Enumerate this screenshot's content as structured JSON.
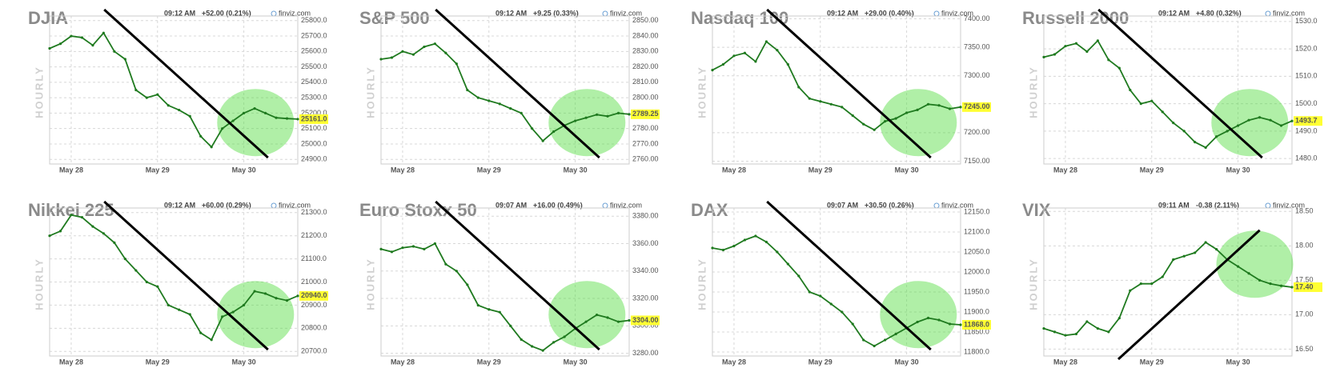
{
  "chart_data": [
    {
      "type": "line",
      "title": "DJIA",
      "time": "09:12 AM",
      "change": "+52.00 (0.21%)",
      "change_color": "#1a9e1a",
      "source": "finviz.com",
      "side_label": "HOURLY",
      "categories": [
        null,
        null,
        "May 28",
        null,
        null,
        null,
        null,
        null,
        null,
        null,
        "May 29",
        null,
        null,
        null,
        null,
        null,
        null,
        null,
        "May 30",
        null,
        null,
        null,
        null,
        null
      ],
      "values": [
        25620,
        25650,
        25700,
        25690,
        25640,
        25720,
        25600,
        25550,
        25350,
        25300,
        25320,
        25250,
        25220,
        25180,
        25050,
        24980,
        25100,
        25150,
        25200,
        25230,
        25200,
        25170,
        25165,
        25161
      ],
      "color": "#1f7a1f",
      "ylim": [
        24870,
        25830
      ],
      "yticks": [
        {
          "value": 24900,
          "label": "24900.0"
        },
        {
          "value": 25000,
          "label": "25000.0"
        },
        {
          "value": 25100,
          "label": "25100.0"
        },
        {
          "value": 25200,
          "label": "25200.0"
        },
        {
          "value": 25300,
          "label": "25300.0"
        },
        {
          "value": 25400,
          "label": "25400.0"
        },
        {
          "value": 25500,
          "label": "25500.0"
        },
        {
          "value": 25600,
          "label": "25600.0"
        },
        {
          "value": 25700,
          "label": "25700.0"
        },
        {
          "value": 25800,
          "label": "25800.0"
        }
      ],
      "last": {
        "value": 25161,
        "label": "25161.0"
      },
      "trend": "down"
    },
    {
      "type": "line",
      "title": "S&P 500",
      "time": "09:12 AM",
      "change": "+9.25 (0.33%)",
      "change_color": "#1a9e1a",
      "source": "finviz.com",
      "side_label": "HOURLY",
      "categories": [
        null,
        null,
        "May 28",
        null,
        null,
        null,
        null,
        null,
        null,
        null,
        "May 29",
        null,
        null,
        null,
        null,
        null,
        null,
        null,
        "May 30",
        null,
        null,
        null,
        null,
        null
      ],
      "values": [
        2825,
        2826,
        2830,
        2828,
        2833,
        2835,
        2829,
        2822,
        2805,
        2800,
        2798,
        2796,
        2793,
        2790,
        2780,
        2772,
        2778,
        2782,
        2785,
        2787,
        2789,
        2788,
        2790,
        2789.25
      ],
      "color": "#1f7a1f",
      "ylim": [
        2757,
        2853
      ],
      "yticks": [
        {
          "value": 2760,
          "label": "2760.00"
        },
        {
          "value": 2770,
          "label": "2770.00"
        },
        {
          "value": 2780,
          "label": "2780.00"
        },
        {
          "value": 2790,
          "label": "2790.00"
        },
        {
          "value": 2800,
          "label": "2800.00"
        },
        {
          "value": 2810,
          "label": "2810.00"
        },
        {
          "value": 2820,
          "label": "2820.00"
        },
        {
          "value": 2830,
          "label": "2830.00"
        },
        {
          "value": 2840,
          "label": "2840.00"
        },
        {
          "value": 2850,
          "label": "2850.00"
        }
      ],
      "last": {
        "value": 2789.25,
        "label": "2789.25"
      },
      "trend": "down"
    },
    {
      "type": "line",
      "title": "Nasdaq 100",
      "time": "09:12 AM",
      "change": "+29.00 (0.40%)",
      "change_color": "#1a9e1a",
      "source": "finviz.com",
      "side_label": "HOURLY",
      "categories": [
        null,
        null,
        "May 28",
        null,
        null,
        null,
        null,
        null,
        null,
        null,
        "May 29",
        null,
        null,
        null,
        null,
        null,
        null,
        null,
        "May 30",
        null,
        null,
        null,
        null,
        null
      ],
      "values": [
        7310,
        7320,
        7335,
        7340,
        7325,
        7360,
        7345,
        7320,
        7280,
        7260,
        7255,
        7250,
        7245,
        7230,
        7215,
        7205,
        7220,
        7225,
        7235,
        7240,
        7250,
        7248,
        7242,
        7245
      ],
      "color": "#1f7a1f",
      "ylim": [
        7145,
        7405
      ],
      "yticks": [
        {
          "value": 7150,
          "label": "7150.00"
        },
        {
          "value": 7200,
          "label": "7200.00"
        },
        {
          "value": 7300,
          "label": "7300.00"
        },
        {
          "value": 7350,
          "label": "7350.00"
        },
        {
          "value": 7400,
          "label": "7400.00"
        }
      ],
      "last": {
        "value": 7245,
        "label": "7245.00"
      },
      "trend": "down"
    },
    {
      "type": "line",
      "title": "Russell 2000",
      "time": "09:12 AM",
      "change": "+4.80 (0.32%)",
      "change_color": "#1a9e1a",
      "source": "finviz.com",
      "side_label": "HOURLY",
      "categories": [
        null,
        null,
        "May 28",
        null,
        null,
        null,
        null,
        null,
        null,
        null,
        "May 29",
        null,
        null,
        null,
        null,
        null,
        null,
        null,
        "May 30",
        null,
        null,
        null,
        null,
        null
      ],
      "values": [
        1517,
        1518,
        1521,
        1522,
        1519,
        1523,
        1516,
        1513,
        1505,
        1500,
        1501,
        1497,
        1493,
        1490,
        1486,
        1484,
        1488,
        1490,
        1492,
        1494,
        1495,
        1494,
        1492,
        1493.7
      ],
      "color": "#1f7a1f",
      "ylim": [
        1478,
        1532
      ],
      "yticks": [
        {
          "value": 1480,
          "label": "1480.0"
        },
        {
          "value": 1490,
          "label": "1490.0"
        },
        {
          "value": 1500,
          "label": "1500.0"
        },
        {
          "value": 1510,
          "label": "1510.0"
        },
        {
          "value": 1520,
          "label": "1520.0"
        },
        {
          "value": 1530,
          "label": "1530.0"
        }
      ],
      "last": {
        "value": 1493.7,
        "label": "1493.7"
      },
      "trend": "down"
    },
    {
      "type": "line",
      "title": "Nikkei 225",
      "time": "09:12 AM",
      "change": "+60.00 (0.29%)",
      "change_color": "#1a9e1a",
      "source": "finviz.com",
      "side_label": "HOURLY",
      "categories": [
        null,
        null,
        "May 28",
        null,
        null,
        null,
        null,
        null,
        null,
        null,
        "May 29",
        null,
        null,
        null,
        null,
        null,
        null,
        null,
        "May 30",
        null,
        null,
        null,
        null,
        null
      ],
      "values": [
        21200,
        21220,
        21290,
        21280,
        21240,
        21210,
        21170,
        21100,
        21050,
        21000,
        20980,
        20900,
        20880,
        20860,
        20780,
        20750,
        20850,
        20870,
        20900,
        20960,
        20950,
        20930,
        20920,
        20940
      ],
      "color": "#1f7a1f",
      "ylim": [
        20680,
        21320
      ],
      "yticks": [
        {
          "value": 20700,
          "label": "20700.0"
        },
        {
          "value": 20800,
          "label": "20800.0"
        },
        {
          "value": 20900,
          "label": "20900.0"
        },
        {
          "value": 21000,
          "label": "21000.0"
        },
        {
          "value": 21100,
          "label": "21100.0"
        },
        {
          "value": 21200,
          "label": "21200.0"
        },
        {
          "value": 21300,
          "label": "21300.0"
        }
      ],
      "last": {
        "value": 20940,
        "label": "20940.0"
      },
      "trend": "down"
    },
    {
      "type": "line",
      "title": "Euro Stoxx 50",
      "time": "09:07 AM",
      "change": "+16.00 (0.49%)",
      "change_color": "#1a9e1a",
      "source": "finviz.com",
      "side_label": "HOURLY",
      "categories": [
        null,
        null,
        "May 28",
        null,
        null,
        null,
        null,
        null,
        null,
        null,
        "May 29",
        null,
        null,
        null,
        null,
        null,
        null,
        null,
        "May 30",
        null,
        null,
        null,
        null,
        null
      ],
      "values": [
        3356,
        3354,
        3357,
        3358,
        3356,
        3360,
        3345,
        3340,
        3330,
        3315,
        3312,
        3310,
        3300,
        3290,
        3285,
        3282,
        3288,
        3292,
        3298,
        3303,
        3308,
        3306,
        3303,
        3304
      ],
      "color": "#1f7a1f",
      "ylim": [
        3278,
        3386
      ],
      "yticks": [
        {
          "value": 3280,
          "label": "3280.00"
        },
        {
          "value": 3300,
          "label": "3300.00"
        },
        {
          "value": 3320,
          "label": "3320.00"
        },
        {
          "value": 3340,
          "label": "3340.00"
        },
        {
          "value": 3360,
          "label": "3360.00"
        },
        {
          "value": 3380,
          "label": "3380.00"
        }
      ],
      "last": {
        "value": 3304,
        "label": "3304.00"
      },
      "trend": "down"
    },
    {
      "type": "line",
      "title": "DAX",
      "time": "09:07 AM",
      "change": "+30.50 (0.26%)",
      "change_color": "#1a9e1a",
      "source": "finviz.com",
      "side_label": "HOURLY",
      "categories": [
        null,
        null,
        "May 28",
        null,
        null,
        null,
        null,
        null,
        null,
        null,
        "May 29",
        null,
        null,
        null,
        null,
        null,
        null,
        null,
        "May 30",
        null,
        null,
        null,
        null,
        null
      ],
      "values": [
        12060,
        12055,
        12065,
        12080,
        12090,
        12075,
        12050,
        12020,
        11990,
        11950,
        11940,
        11920,
        11900,
        11870,
        11830,
        11815,
        11830,
        11845,
        11860,
        11875,
        11885,
        11880,
        11870,
        11868
      ],
      "color": "#1f7a1f",
      "ylim": [
        11790,
        12160
      ],
      "yticks": [
        {
          "value": 11800,
          "label": "11800.0"
        },
        {
          "value": 11850,
          "label": "11850.0"
        },
        {
          "value": 11900,
          "label": "11900.0"
        },
        {
          "value": 11950,
          "label": "11950.0"
        },
        {
          "value": 12000,
          "label": "12000.0"
        },
        {
          "value": 12050,
          "label": "12050.0"
        },
        {
          "value": 12100,
          "label": "12100.0"
        },
        {
          "value": 12150,
          "label": "12150.0"
        }
      ],
      "last": {
        "value": 11868,
        "label": "11868.0"
      },
      "trend": "down"
    },
    {
      "type": "line",
      "title": "VIX",
      "time": "09:11 AM",
      "change": "-0.38 (2.11%)",
      "change_color": "#d42020",
      "source": "finviz.com",
      "side_label": "HOURLY",
      "categories": [
        null,
        null,
        "May 28",
        null,
        null,
        null,
        null,
        null,
        null,
        null,
        "May 29",
        null,
        null,
        null,
        null,
        null,
        null,
        null,
        "May 30",
        null,
        null,
        null,
        null,
        null
      ],
      "values": [
        16.8,
        16.75,
        16.7,
        16.72,
        16.9,
        16.8,
        16.75,
        16.95,
        17.35,
        17.45,
        17.45,
        17.55,
        17.8,
        17.85,
        17.9,
        18.05,
        17.95,
        17.8,
        17.7,
        17.6,
        17.5,
        17.45,
        17.42,
        17.4
      ],
      "color": "#1f7a1f",
      "ylim": [
        16.4,
        18.55
      ],
      "yticks": [
        {
          "value": 16.5,
          "label": "16.50"
        },
        {
          "value": 17,
          "label": "17.00"
        },
        {
          "value": 17.5,
          "label": "17.50"
        },
        {
          "value": 18,
          "label": "18.00"
        },
        {
          "value": 18.5,
          "label": "18.50"
        }
      ],
      "last": {
        "value": 17.4,
        "label": "17.40"
      },
      "trend": "up"
    }
  ]
}
